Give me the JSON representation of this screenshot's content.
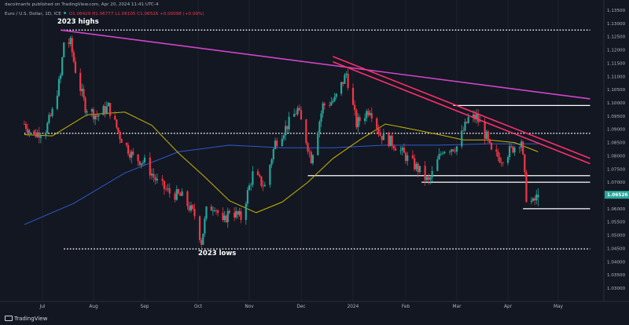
{
  "header": {
    "publisher": "dacolmanfx published on TradingView.com, Apr 20, 2024 11:41 UTC-4",
    "symbol": "Euro / U.S. Dollar, 1D, ICE",
    "open": "O1.06429",
    "high": "H1.06777",
    "low": "L1.06105",
    "close": "C1.06526",
    "change": "+0.00098 (+0.09%)"
  },
  "footer": {
    "brand": "TradingView"
  },
  "annotations": {
    "highs": "2023 highs",
    "lows": "2023 lows"
  },
  "last_price_label": "1.06526",
  "colors": {
    "background": "#131722",
    "up": "#26a69a",
    "down": "#f23645",
    "ma50": "#c8b400",
    "ma200": "#2e5ac8",
    "long_trendline": "#d045c8",
    "channel": "#ff2f6a",
    "support": "#ffffff",
    "price_tag": "#26a69a"
  },
  "chart_data": {
    "type": "candlestick",
    "title": "Euro / U.S. Dollar, 1D, ICE",
    "x_tick_labels": [
      "Jul",
      "Aug",
      "Sep",
      "Oct",
      "Nov",
      "Dec",
      "2024",
      "Feb",
      "Mar",
      "Apr",
      "May"
    ],
    "y_tick_labels": [
      "1.13500",
      "1.13000",
      "1.12500",
      "1.12000",
      "1.11500",
      "1.11000",
      "1.10500",
      "1.10000",
      "1.09500",
      "1.09000",
      "1.08500",
      "1.08000",
      "1.07500",
      "1.07000",
      "1.06500",
      "1.06000",
      "1.05500",
      "1.05000",
      "1.04500",
      "1.04000",
      "1.03500",
      "1.03000"
    ],
    "ylim": [
      1.028,
      1.138
    ],
    "close_path": [
      [
        "2023-06-20",
        1.092
      ],
      [
        "2023-06-26",
        1.088
      ],
      [
        "2023-07-03",
        1.09
      ],
      [
        "2023-07-07",
        1.0965
      ],
      [
        "2023-07-12",
        1.11
      ],
      [
        "2023-07-14",
        1.123
      ],
      [
        "2023-07-18",
        1.1225
      ],
      [
        "2023-07-21",
        1.1125
      ],
      [
        "2023-07-27",
        1.0985
      ],
      [
        "2023-08-03",
        1.095
      ],
      [
        "2023-08-10",
        1.0985
      ],
      [
        "2023-08-17",
        1.0875
      ],
      [
        "2023-08-25",
        1.0795
      ],
      [
        "2023-09-01",
        1.0775
      ],
      [
        "2023-09-08",
        1.07
      ],
      [
        "2023-09-15",
        1.066
      ],
      [
        "2023-09-22",
        1.0645
      ],
      [
        "2023-09-29",
        1.0575
      ],
      [
        "2023-10-03",
        1.0475
      ],
      [
        "2023-10-06",
        1.059
      ],
      [
        "2023-10-11",
        1.0615
      ],
      [
        "2023-10-16",
        1.054
      ],
      [
        "2023-10-20",
        1.0595
      ],
      [
        "2023-10-27",
        1.0565
      ],
      [
        "2023-11-03",
        1.073
      ],
      [
        "2023-11-10",
        1.0685
      ],
      [
        "2023-11-16",
        1.085
      ],
      [
        "2023-11-22",
        1.0905
      ],
      [
        "2023-11-29",
        1.0975
      ],
      [
        "2023-12-07",
        1.079
      ],
      [
        "2023-12-14",
        1.099
      ],
      [
        "2023-12-21",
        1.101
      ],
      [
        "2023-12-28",
        1.111
      ],
      [
        "2024-01-03",
        1.092
      ],
      [
        "2024-01-11",
        1.098
      ],
      [
        "2024-01-17",
        1.088
      ],
      [
        "2024-01-25",
        1.0845
      ],
      [
        "2024-02-02",
        1.079
      ],
      [
        "2024-02-08",
        1.075
      ],
      [
        "2024-02-14",
        1.07
      ],
      [
        "2024-02-22",
        1.0825
      ],
      [
        "2024-03-01",
        1.0835
      ],
      [
        "2024-03-08",
        1.094
      ],
      [
        "2024-03-13",
        1.0945
      ],
      [
        "2024-03-19",
        1.087
      ],
      [
        "2024-03-22",
        1.081
      ],
      [
        "2024-03-28",
        1.079
      ],
      [
        "2024-04-05",
        1.0835
      ],
      [
        "2024-04-09",
        1.086
      ],
      [
        "2024-04-12",
        1.0645
      ],
      [
        "2024-04-16",
        1.062
      ],
      [
        "2024-04-19",
        1.0653
      ]
    ],
    "ma50_path": [
      [
        "2023-06-20",
        1.088
      ],
      [
        "2023-07-07",
        1.0875
      ],
      [
        "2023-07-28",
        1.0955
      ],
      [
        "2023-08-20",
        1.0965
      ],
      [
        "2023-09-05",
        1.0915
      ],
      [
        "2023-09-20",
        1.081
      ],
      [
        "2023-10-05",
        1.072
      ],
      [
        "2023-10-20",
        1.063
      ],
      [
        "2023-11-05",
        1.0585
      ],
      [
        "2023-11-20",
        1.0625
      ],
      [
        "2023-12-05",
        1.07
      ],
      [
        "2023-12-20",
        1.079
      ],
      [
        "2024-01-05",
        1.086
      ],
      [
        "2024-01-20",
        1.092
      ],
      [
        "2024-02-05",
        1.09
      ],
      [
        "2024-02-20",
        1.088
      ],
      [
        "2024-03-05",
        1.086
      ],
      [
        "2024-03-20",
        1.086
      ],
      [
        "2024-04-05",
        1.085
      ],
      [
        "2024-04-19",
        1.0815
      ]
    ],
    "ma200_path": [
      [
        "2023-06-20",
        1.054
      ],
      [
        "2023-07-20",
        1.062
      ],
      [
        "2023-08-20",
        1.0735
      ],
      [
        "2023-09-20",
        1.0815
      ],
      [
        "2023-10-20",
        1.084
      ],
      [
        "2023-11-20",
        1.083
      ],
      [
        "2023-12-20",
        1.083
      ],
      [
        "2024-01-20",
        1.084
      ],
      [
        "2024-02-20",
        1.084
      ],
      [
        "2024-03-20",
        1.0845
      ],
      [
        "2024-04-19",
        1.0845
      ]
    ],
    "horizontal_levels": [
      {
        "y": 1.1275,
        "style": "dotted",
        "from": "2023-07-12",
        "to": "2024-05-20"
      },
      {
        "y": 1.0885,
        "style": "dotted",
        "from": "2023-06-20",
        "to": "2024-05-20"
      },
      {
        "y": 1.0448,
        "style": "dotted",
        "from": "2023-07-14",
        "to": "2024-05-20"
      },
      {
        "y": 1.099,
        "style": "solid",
        "from": "2024-02-28",
        "to": "2024-05-20"
      },
      {
        "y": 1.0725,
        "style": "solid",
        "from": "2023-12-05",
        "to": "2024-05-20"
      },
      {
        "y": 1.07,
        "style": "solid",
        "from": "2024-02-10",
        "to": "2024-05-20"
      },
      {
        "y": 1.06,
        "style": "solid",
        "from": "2024-04-10",
        "to": "2024-05-20"
      }
    ],
    "trendlines": [
      {
        "name": "long-downtrend",
        "from": [
          "2023-07-12",
          1.1275
        ],
        "to": [
          "2024-05-20",
          1.1015
        ]
      },
      {
        "name": "channel-upper",
        "from": [
          "2023-12-20",
          1.1175
        ],
        "to": [
          "2024-05-20",
          1.079
        ]
      },
      {
        "name": "channel-lower",
        "from": [
          "2023-12-20",
          1.1155
        ],
        "to": [
          "2024-05-20",
          1.077
        ]
      }
    ],
    "annotations": [
      {
        "text": "2023 highs",
        "x": "2023-07-10",
        "y": 1.13
      },
      {
        "text": "2023 lows",
        "x": "2023-10-01",
        "y": 1.0425
      }
    ]
  }
}
